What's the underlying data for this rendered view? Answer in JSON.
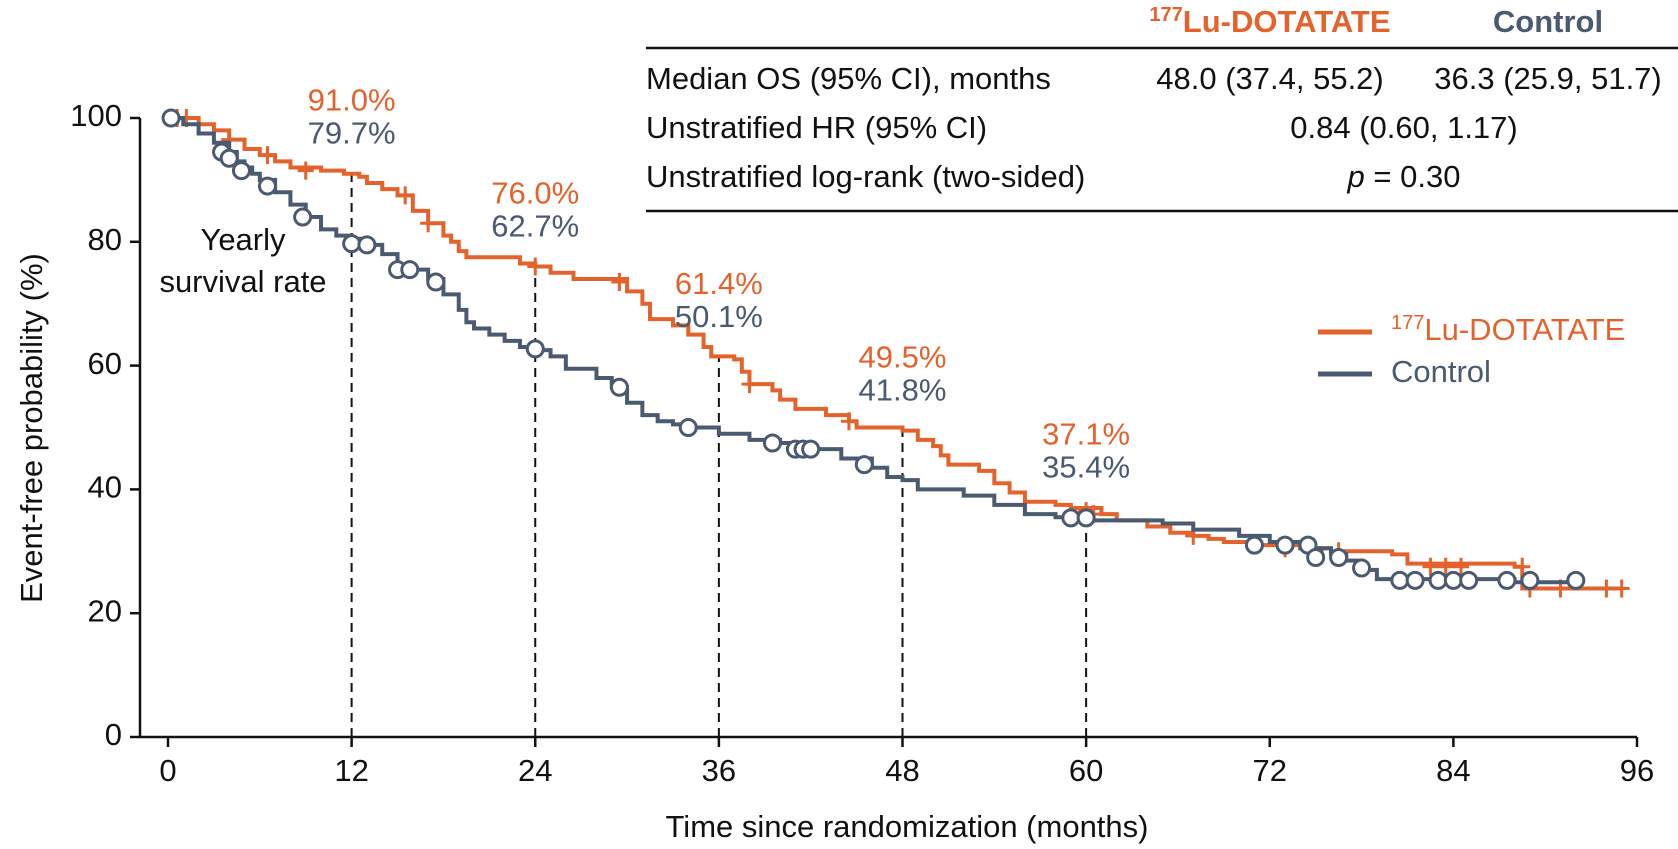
{
  "chart_data": {
    "type": "step",
    "xlabel": "Time since randomization (months)",
    "ylabel": "Event-free probability (%)",
    "xlim": [
      0,
      96
    ],
    "ylim": [
      0,
      100
    ],
    "xticks": [
      0,
      12,
      24,
      36,
      48,
      60,
      72,
      84,
      96
    ],
    "yticks": [
      0,
      20,
      40,
      60,
      80,
      100
    ],
    "legend": "right",
    "series": [
      {
        "name_sup": "177",
        "name": "Lu-DOTATATE",
        "color": "#e4632d",
        "marker": "plus",
        "x": [
          0,
          2,
          3,
          4,
          5,
          6,
          7,
          8,
          10,
          11.5,
          12.5,
          13,
          14,
          15,
          16,
          17,
          18,
          18.5,
          19,
          19.5,
          23,
          24,
          25,
          26.5,
          30,
          31,
          31.5,
          33,
          34,
          35,
          35.5,
          37,
          37.5,
          38,
          39.5,
          40,
          41,
          43,
          44.5,
          45,
          48,
          49,
          50,
          50.5,
          51,
          53,
          54,
          55,
          56,
          58,
          59,
          61,
          62,
          64,
          65.5,
          67,
          68,
          69,
          71,
          74,
          76,
          80,
          81,
          88,
          88.5,
          95
        ],
        "values": [
          100,
          99,
          98,
          96.5,
          95,
          94,
          93,
          92,
          91.5,
          91,
          90.5,
          89.5,
          88.5,
          87.5,
          85,
          83,
          81,
          80,
          78.5,
          77.5,
          76.5,
          76,
          75,
          74,
          72,
          70,
          67.5,
          66.5,
          65,
          63,
          61.5,
          61,
          59,
          57,
          56,
          54.5,
          53,
          52,
          51,
          50,
          49.5,
          48,
          47,
          45.5,
          44,
          43,
          41,
          39.5,
          38,
          37.5,
          37,
          36,
          35,
          34,
          33,
          32.5,
          32,
          31.5,
          31,
          30.5,
          30,
          29.5,
          28,
          27.5,
          24,
          24
        ],
        "censored": {
          "x": [
            0.6,
            1.2,
            4,
            6.5,
            9,
            15.5,
            17,
            24,
            29.5,
            38,
            44.5,
            60,
            60.5,
            67,
            73,
            75,
            76.5,
            82.5,
            83.5,
            84.5,
            88.5,
            89,
            91,
            94,
            95
          ],
          "y": [
            100,
            100,
            96.5,
            94,
            91.5,
            87.5,
            83,
            76,
            73.5,
            57,
            51,
            36.5,
            36,
            32.5,
            30.5,
            30,
            30,
            27.5,
            27.5,
            27.5,
            27.5,
            24,
            24,
            24,
            24
          ]
        },
        "landmark_values": [
          91.0,
          76.0,
          61.4,
          49.5,
          37.1
        ],
        "landmark_labels": [
          "91.0%",
          "76.0%",
          "61.4%",
          "49.5%",
          "37.1%"
        ]
      },
      {
        "name": "Control",
        "color": "#4a5a70",
        "marker": "circle",
        "x": [
          0,
          1,
          2,
          3,
          4,
          4.5,
          5,
          5.5,
          6,
          7,
          8,
          9,
          10,
          11,
          12,
          13,
          14,
          15,
          16,
          17,
          18,
          19,
          19.5,
          20,
          21,
          22,
          23,
          24,
          25,
          26,
          28,
          29,
          30,
          31,
          32,
          33,
          34,
          36,
          38,
          40,
          42,
          44,
          46,
          47,
          48,
          49,
          52,
          54,
          56,
          58,
          60,
          65,
          67,
          70,
          72,
          74,
          76,
          77,
          78,
          79,
          88,
          92
        ],
        "values": [
          100,
          99,
          97.5,
          96,
          94.5,
          93,
          92,
          91,
          90,
          88,
          86,
          84,
          82,
          81,
          80.5,
          79.5,
          78,
          76,
          75.5,
          74,
          71.5,
          69,
          67,
          66,
          65,
          64,
          63,
          62.5,
          61.5,
          59.5,
          58,
          56.5,
          54,
          52,
          51,
          50.5,
          50,
          49,
          48,
          47.5,
          46.5,
          45,
          43.5,
          42,
          41.5,
          40,
          39,
          37.5,
          36,
          35.5,
          35,
          34.5,
          33.5,
          32.5,
          31.5,
          30.5,
          29.5,
          28.5,
          27,
          25.5,
          25,
          25
        ],
        "censored": {
          "x": [
            0.2,
            3.5,
            4,
            4.8,
            6.5,
            8.8,
            12,
            13,
            15,
            15.8,
            17.5,
            24,
            29.5,
            34,
            39.5,
            41,
            41.5,
            42,
            45.5,
            59,
            60,
            71,
            73,
            74.5,
            75,
            76.5,
            78,
            80.5,
            81.5,
            83,
            84,
            85,
            87.5,
            89,
            92
          ],
          "y": [
            100,
            94.5,
            93.5,
            91.5,
            89,
            84,
            79.7,
            79.5,
            75.5,
            75.5,
            73.5,
            62.7,
            56.5,
            50,
            47.5,
            46.5,
            46.5,
            46.5,
            44,
            35.4,
            35.4,
            31,
            31,
            31,
            29,
            29,
            27.3,
            25.3,
            25.3,
            25.3,
            25.3,
            25.3,
            25.3,
            25.3,
            25.3
          ]
        },
        "landmark_values": [
          79.7,
          62.7,
          50.1,
          41.8,
          35.4
        ],
        "landmark_labels": [
          "79.7%",
          "62.7%",
          "50.1%",
          "41.8%",
          "35.4%"
        ]
      }
    ],
    "landmarks_x": [
      12,
      24,
      36,
      48,
      60
    ],
    "annotation": [
      "Yearly",
      "survival rate"
    ],
    "table": {
      "header": [
        {
          "sup": "177",
          "text": "Lu-DOTATATE"
        },
        "Control"
      ],
      "rows": [
        [
          "Median OS (95% CI), months",
          "48.0 (37.4, 55.2)",
          "36.3 (25.9, 51.7)"
        ],
        [
          "Unstratified HR (95% CI)",
          "0.84 (0.60, 1.17)"
        ],
        [
          "Unstratified log-rank (two-sided)",
          {
            "italic": "p",
            "text": " = 0.30"
          }
        ]
      ]
    }
  }
}
